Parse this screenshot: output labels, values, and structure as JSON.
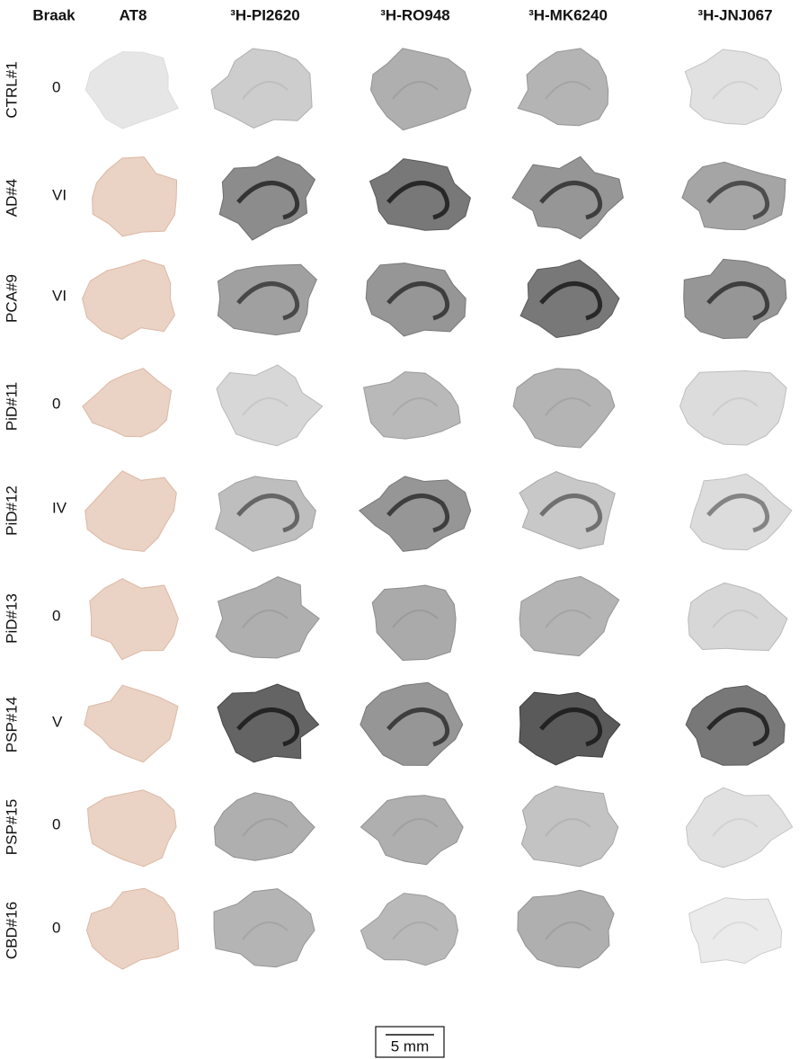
{
  "header": {
    "columns": [
      "Braak",
      "AT8",
      "³H-PI2620",
      "³H-RO948",
      "³H-MK6240",
      "³H-JNJ067"
    ]
  },
  "rows": [
    {
      "label": "CTRL#1",
      "braak": "0"
    },
    {
      "label": "AD#4",
      "braak": "VI"
    },
    {
      "label": "PCA#9",
      "braak": "VI"
    },
    {
      "label": "PiD#11",
      "braak": "0"
    },
    {
      "label": "PiD#12",
      "braak": "IV"
    },
    {
      "label": "PiD#13",
      "braak": "0"
    },
    {
      "label": "PSP#14",
      "braak": "V"
    },
    {
      "label": "PSP#15",
      "braak": "0"
    },
    {
      "label": "CBD#16",
      "braak": "0"
    }
  ],
  "scale_bar": "5 mm"
}
